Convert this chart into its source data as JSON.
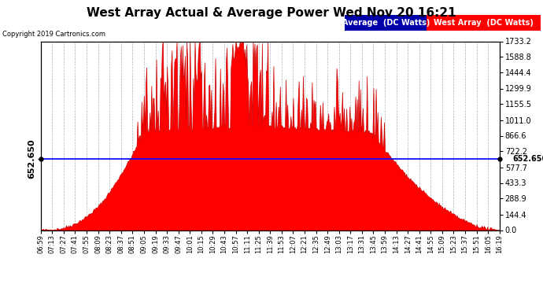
{
  "title": "West Array Actual & Average Power Wed Nov 20 16:21",
  "copyright": "Copyright 2019 Cartronics.com",
  "avg_label": "Average  (DC Watts)",
  "west_label": "West Array  (DC Watts)",
  "avg_value": 652.65,
  "y_max": 1733.2,
  "y_min": 0.0,
  "y_ticks_right": [
    0.0,
    144.4,
    288.9,
    433.3,
    577.7,
    722.2,
    866.6,
    1011.0,
    1155.5,
    1299.9,
    1444.4,
    1588.8,
    1733.2
  ],
  "avg_line_color": "#0000FF",
  "west_fill_color": "#FF0000",
  "background_color": "#FFFFFF",
  "grid_color": "#AAAAAA",
  "legend_avg_bg": "#0000AA",
  "legend_west_bg": "#CC0000",
  "title_fontsize": 11,
  "x_label_fontsize": 6.0,
  "x_times": [
    "06:59",
    "07:13",
    "07:27",
    "07:41",
    "07:55",
    "08:09",
    "08:23",
    "08:37",
    "08:51",
    "09:05",
    "09:19",
    "09:33",
    "09:47",
    "10:01",
    "10:15",
    "10:29",
    "10:43",
    "10:57",
    "11:11",
    "11:25",
    "11:39",
    "11:53",
    "12:07",
    "12:21",
    "12:35",
    "12:49",
    "13:03",
    "13:17",
    "13:31",
    "13:45",
    "13:59",
    "14:13",
    "14:27",
    "14:41",
    "14:55",
    "15:09",
    "15:23",
    "15:37",
    "15:51",
    "16:05",
    "16:19"
  ]
}
